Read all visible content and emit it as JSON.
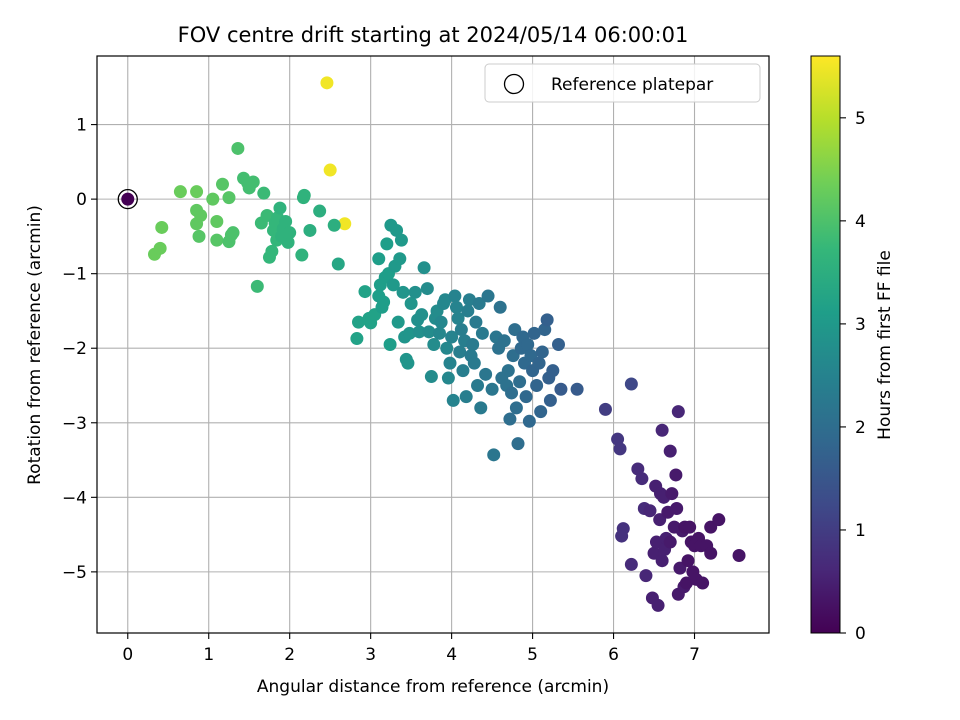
{
  "chart_data": {
    "type": "scatter",
    "title": "FOV centre drift starting at 2024/05/14 06:00:01",
    "xlabel": "Angular distance from reference (arcmin)",
    "ylabel": "Rotation from reference (arcmin)",
    "colorbar_label": "Hours from first FF file",
    "xlim": [
      -0.38,
      7.92
    ],
    "ylim": [
      -5.82,
      1.92
    ],
    "clim": [
      0,
      5.6
    ],
    "xticks": [
      0,
      1,
      2,
      3,
      4,
      5,
      6,
      7
    ],
    "yticks": [
      1,
      0,
      -1,
      -2,
      -3,
      -4,
      -5
    ],
    "cticks": [
      0,
      1,
      2,
      3,
      4,
      5
    ],
    "grid": true,
    "legend": {
      "position": "top-right",
      "entries": [
        "Reference platepar"
      ]
    },
    "reference_point": {
      "x": 0,
      "y": 0
    },
    "colormap": [
      "#440154",
      "#482878",
      "#3e4a89",
      "#31688e",
      "#26828e",
      "#1f9e89",
      "#35b779",
      "#6ece58",
      "#b5de2b",
      "#fde725"
    ],
    "points": [
      [
        0.0,
        0.0,
        0.0
      ],
      [
        2.46,
        1.56,
        5.5
      ],
      [
        2.5,
        0.39,
        5.5
      ],
      [
        2.68,
        -0.33,
        5.5
      ],
      [
        0.65,
        0.1,
        4.3
      ],
      [
        0.85,
        0.1,
        4.3
      ],
      [
        0.85,
        -0.15,
        4.2
      ],
      [
        0.9,
        -0.22,
        4.2
      ],
      [
        0.85,
        -0.33,
        4.2
      ],
      [
        0.88,
        -0.5,
        4.1
      ],
      [
        1.05,
        0.0,
        4.2
      ],
      [
        1.1,
        -0.3,
        4.2
      ],
      [
        1.1,
        -0.55,
        4.1
      ],
      [
        1.17,
        0.2,
        4.1
      ],
      [
        1.25,
        0.02,
        4.1
      ],
      [
        1.25,
        -0.57,
        4.0
      ],
      [
        1.28,
        -0.48,
        4.0
      ],
      [
        1.3,
        -0.45,
        4.0
      ],
      [
        1.36,
        0.68,
        4.0
      ],
      [
        1.43,
        0.28,
        3.9
      ],
      [
        1.5,
        0.15,
        3.9
      ],
      [
        1.55,
        0.23,
        3.9
      ],
      [
        1.48,
        0.22,
        3.9
      ],
      [
        0.33,
        -0.74,
        4.3
      ],
      [
        0.4,
        -0.66,
        4.3
      ],
      [
        0.42,
        -0.38,
        4.3
      ],
      [
        1.6,
        -1.17,
        3.8
      ],
      [
        1.65,
        -0.32,
        3.8
      ],
      [
        1.68,
        0.08,
        3.8
      ],
      [
        1.72,
        -0.22,
        3.8
      ],
      [
        1.75,
        -0.78,
        3.7
      ],
      [
        1.78,
        -0.7,
        3.7
      ],
      [
        1.8,
        -0.42,
        3.7
      ],
      [
        1.82,
        -0.32,
        3.7
      ],
      [
        1.84,
        -0.55,
        3.7
      ],
      [
        1.85,
        -0.25,
        3.7
      ],
      [
        1.88,
        -0.12,
        3.6
      ],
      [
        1.9,
        -0.5,
        3.6
      ],
      [
        1.92,
        -0.4,
        3.6
      ],
      [
        1.95,
        -0.3,
        3.6
      ],
      [
        1.98,
        -0.58,
        3.6
      ],
      [
        2.0,
        -0.45,
        3.6
      ],
      [
        2.15,
        -0.75,
        3.6
      ],
      [
        2.17,
        0.02,
        3.6
      ],
      [
        2.18,
        0.05,
        3.6
      ],
      [
        2.25,
        -0.42,
        3.5
      ],
      [
        2.37,
        -0.16,
        3.5
      ],
      [
        2.55,
        -0.35,
        3.5
      ],
      [
        2.6,
        -0.87,
        3.3
      ],
      [
        2.83,
        -1.87,
        3.2
      ],
      [
        2.85,
        -1.65,
        3.2
      ],
      [
        2.93,
        -1.24,
        3.2
      ],
      [
        2.98,
        -1.6,
        3.2
      ],
      [
        3.0,
        -1.66,
        3.2
      ],
      [
        3.05,
        -1.55,
        3.2
      ],
      [
        3.1,
        -0.8,
        3.1
      ],
      [
        3.1,
        -1.3,
        3.1
      ],
      [
        3.12,
        -1.15,
        3.1
      ],
      [
        3.14,
        -1.45,
        3.1
      ],
      [
        3.16,
        -1.38,
        3.1
      ],
      [
        3.18,
        -1.05,
        3.1
      ],
      [
        3.2,
        -0.6,
        3.1
      ],
      [
        3.22,
        -1.0,
        3.1
      ],
      [
        3.24,
        -1.95,
        3.1
      ],
      [
        3.25,
        -0.35,
        3.0
      ],
      [
        3.28,
        -1.15,
        3.0
      ],
      [
        3.3,
        -0.9,
        3.0
      ],
      [
        3.32,
        -0.42,
        3.0
      ],
      [
        3.34,
        -1.65,
        3.0
      ],
      [
        3.36,
        -0.8,
        3.0
      ],
      [
        3.38,
        -0.55,
        3.0
      ],
      [
        3.4,
        -1.25,
        2.9
      ],
      [
        3.42,
        -1.85,
        2.9
      ],
      [
        3.44,
        -2.15,
        2.9
      ],
      [
        3.46,
        -2.2,
        2.9
      ],
      [
        3.48,
        -1.8,
        2.9
      ],
      [
        3.5,
        -1.4,
        2.9
      ],
      [
        3.55,
        -1.25,
        2.8
      ],
      [
        3.58,
        -1.62,
        2.8
      ],
      [
        3.6,
        -1.78,
        2.8
      ],
      [
        3.63,
        -1.55,
        2.8
      ],
      [
        3.66,
        -0.92,
        2.8
      ],
      [
        3.7,
        -1.2,
        2.7
      ],
      [
        3.72,
        -1.78,
        2.7
      ],
      [
        3.75,
        -2.38,
        2.7
      ],
      [
        3.78,
        -1.95,
        2.7
      ],
      [
        3.8,
        -1.6,
        2.7
      ],
      [
        3.82,
        -1.5,
        2.7
      ],
      [
        3.85,
        -1.8,
        2.6
      ],
      [
        3.87,
        -1.65,
        2.6
      ],
      [
        3.9,
        -1.4,
        2.6
      ],
      [
        3.92,
        -1.35,
        2.6
      ],
      [
        3.94,
        -2.0,
        2.6
      ],
      [
        3.96,
        -2.4,
        2.6
      ],
      [
        3.98,
        -2.2,
        2.5
      ],
      [
        4.0,
        -1.85,
        2.5
      ],
      [
        4.02,
        -2.7,
        2.5
      ],
      [
        4.04,
        -1.3,
        2.5
      ],
      [
        4.06,
        -1.45,
        2.5
      ],
      [
        4.08,
        -1.6,
        2.5
      ],
      [
        4.1,
        -2.05,
        2.4
      ],
      [
        4.12,
        -1.75,
        2.4
      ],
      [
        4.14,
        -2.3,
        2.4
      ],
      [
        4.16,
        -1.9,
        2.4
      ],
      [
        4.18,
        -2.65,
        2.4
      ],
      [
        4.2,
        -1.5,
        2.4
      ],
      [
        4.22,
        -1.35,
        2.4
      ],
      [
        4.24,
        -2.1,
        2.3
      ],
      [
        4.26,
        -1.95,
        2.3
      ],
      [
        4.28,
        -2.2,
        2.3
      ],
      [
        4.3,
        -1.65,
        2.3
      ],
      [
        4.32,
        -2.5,
        2.3
      ],
      [
        4.34,
        -1.4,
        2.3
      ],
      [
        4.36,
        -2.8,
        2.3
      ],
      [
        4.38,
        -1.8,
        2.3
      ],
      [
        4.42,
        -2.35,
        2.2
      ],
      [
        4.45,
        -1.3,
        2.2
      ],
      [
        4.5,
        -2.55,
        2.2
      ],
      [
        4.52,
        -3.43,
        2.2
      ],
      [
        4.55,
        -1.85,
        2.2
      ],
      [
        4.58,
        -2.0,
        2.1
      ],
      [
        4.6,
        -1.45,
        2.1
      ],
      [
        4.62,
        -2.4,
        2.1
      ],
      [
        4.65,
        -1.9,
        2.1
      ],
      [
        4.68,
        -2.5,
        2.1
      ],
      [
        4.7,
        -2.3,
        2.1
      ],
      [
        4.72,
        -2.95,
        2.0
      ],
      [
        4.74,
        -2.6,
        2.0
      ],
      [
        4.76,
        -2.1,
        2.0
      ],
      [
        4.78,
        -1.75,
        2.0
      ],
      [
        4.8,
        -2.8,
        2.0
      ],
      [
        4.82,
        -3.28,
        2.0
      ],
      [
        4.84,
        -2.45,
        2.0
      ],
      [
        4.86,
        -2.0,
        1.9
      ],
      [
        4.88,
        -1.85,
        1.9
      ],
      [
        4.9,
        -2.2,
        1.9
      ],
      [
        4.92,
        -2.65,
        1.9
      ],
      [
        4.94,
        -1.95,
        1.9
      ],
      [
        4.96,
        -2.98,
        1.9
      ],
      [
        4.98,
        -2.1,
        1.9
      ],
      [
        5.0,
        -2.3,
        1.8
      ],
      [
        5.02,
        -1.8,
        1.8
      ],
      [
        5.05,
        -2.5,
        1.8
      ],
      [
        5.08,
        -2.2,
        1.8
      ],
      [
        5.1,
        -2.85,
        1.8
      ],
      [
        5.12,
        -2.05,
        1.8
      ],
      [
        5.15,
        -1.75,
        1.8
      ],
      [
        5.18,
        -1.62,
        1.7
      ],
      [
        5.2,
        -2.4,
        1.7
      ],
      [
        5.22,
        -2.7,
        1.7
      ],
      [
        5.25,
        -2.3,
        1.7
      ],
      [
        5.32,
        -1.95,
        1.7
      ],
      [
        5.35,
        -2.55,
        1.6
      ],
      [
        5.55,
        -2.55,
        1.6
      ],
      [
        5.9,
        -2.82,
        1.0
      ],
      [
        6.05,
        -3.22,
        0.9
      ],
      [
        6.08,
        -3.35,
        0.9
      ],
      [
        6.1,
        -4.52,
        0.8
      ],
      [
        6.12,
        -4.42,
        0.8
      ],
      [
        6.22,
        -2.48,
        1.2
      ],
      [
        6.22,
        -4.9,
        0.7
      ],
      [
        6.3,
        -3.62,
        0.7
      ],
      [
        6.35,
        -3.75,
        0.7
      ],
      [
        6.38,
        -4.15,
        0.7
      ],
      [
        6.4,
        -5.05,
        0.6
      ],
      [
        6.45,
        -4.18,
        0.6
      ],
      [
        6.48,
        -5.35,
        0.5
      ],
      [
        6.5,
        -4.75,
        0.5
      ],
      [
        6.52,
        -3.85,
        0.5
      ],
      [
        6.53,
        -4.6,
        0.5
      ],
      [
        6.55,
        -5.45,
        0.5
      ],
      [
        6.57,
        -4.3,
        0.5
      ],
      [
        6.58,
        -3.95,
        0.5
      ],
      [
        6.6,
        -3.1,
        0.6
      ],
      [
        6.6,
        -4.85,
        0.5
      ],
      [
        6.62,
        -4.0,
        0.5
      ],
      [
        6.63,
        -4.7,
        0.5
      ],
      [
        6.65,
        -4.55,
        0.5
      ],
      [
        6.67,
        -4.2,
        0.4
      ],
      [
        6.7,
        -3.38,
        0.5
      ],
      [
        6.7,
        -4.6,
        0.4
      ],
      [
        6.72,
        -3.95,
        0.4
      ],
      [
        6.75,
        -4.4,
        0.4
      ],
      [
        6.77,
        -3.7,
        0.4
      ],
      [
        6.78,
        -4.15,
        0.4
      ],
      [
        6.8,
        -5.3,
        0.4
      ],
      [
        6.8,
        -2.85,
        0.6
      ],
      [
        6.82,
        -4.95,
        0.4
      ],
      [
        6.85,
        -4.45,
        0.4
      ],
      [
        6.87,
        -5.2,
        0.4
      ],
      [
        6.88,
        -4.4,
        0.3
      ],
      [
        6.9,
        -5.15,
        0.3
      ],
      [
        6.92,
        -4.85,
        0.3
      ],
      [
        6.94,
        -4.4,
        0.3
      ],
      [
        6.96,
        -4.6,
        0.3
      ],
      [
        6.98,
        -5.0,
        0.3
      ],
      [
        7.0,
        -4.65,
        0.3
      ],
      [
        7.02,
        -5.1,
        0.3
      ],
      [
        7.05,
        -4.55,
        0.3
      ],
      [
        7.08,
        -4.65,
        0.3
      ],
      [
        7.1,
        -5.15,
        0.3
      ],
      [
        7.15,
        -4.65,
        0.3
      ],
      [
        7.2,
        -4.75,
        0.3
      ],
      [
        7.2,
        -4.4,
        0.3
      ],
      [
        7.3,
        -4.3,
        0.3
      ],
      [
        7.55,
        -4.78,
        0.3
      ]
    ]
  }
}
